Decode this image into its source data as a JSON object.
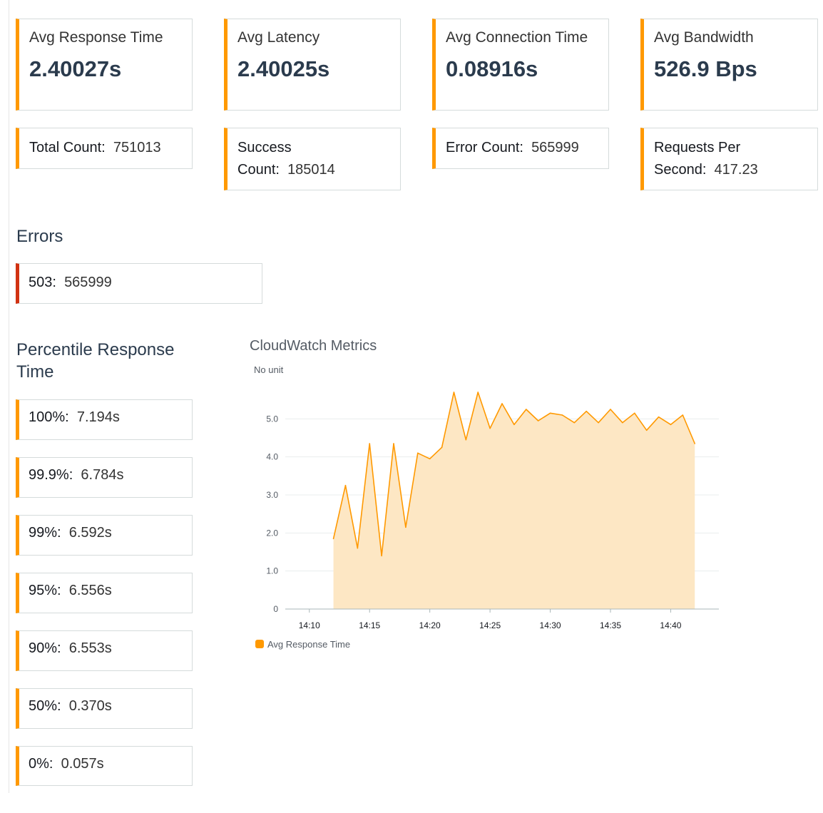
{
  "summary_metrics": [
    {
      "label": "Avg Response Time",
      "value": "2.40027s"
    },
    {
      "label": "Avg Latency",
      "value": "2.40025s"
    },
    {
      "label": "Avg Connection Time",
      "value": "0.08916s"
    },
    {
      "label": "Avg Bandwidth",
      "value": "526.9 Bps"
    }
  ],
  "counts": [
    {
      "label": "Total Count:",
      "value": "751013"
    },
    {
      "label": "Success Count:",
      "value": "185014"
    },
    {
      "label": "Error Count:",
      "value": "565999"
    },
    {
      "label": "Requests Per Second:",
      "value": "417.23"
    }
  ],
  "errors": {
    "title": "Errors",
    "items": [
      {
        "label": "503:",
        "value": "565999"
      }
    ]
  },
  "percentiles": {
    "title": "Percentile Response Time",
    "items": [
      {
        "label": "100%:",
        "value": "7.194s"
      },
      {
        "label": "99.9%:",
        "value": "6.784s"
      },
      {
        "label": "99%:",
        "value": "6.592s"
      },
      {
        "label": "95%:",
        "value": "6.556s"
      },
      {
        "label": "90%:",
        "value": "6.553s"
      },
      {
        "label": "50%:",
        "value": "0.370s"
      },
      {
        "label": "0%:",
        "value": "0.057s"
      }
    ]
  },
  "chart": {
    "title": "CloudWatch Metrics",
    "unit_label": "No unit",
    "accent_color": "#ff9900",
    "fill_color": "#fde7c4"
  },
  "chart_data": {
    "type": "area",
    "title": "CloudWatch Metrics",
    "ylabel": "No unit",
    "xlabel": "",
    "ylim": [
      0,
      5.7
    ],
    "y_ticks": [
      "0",
      "1.0",
      "2.0",
      "3.0",
      "4.0",
      "5.0"
    ],
    "x_ticks": [
      "14:10",
      "14:15",
      "14:20",
      "14:25",
      "14:30",
      "14:35",
      "14:40"
    ],
    "x_tick_minutes": [
      10,
      15,
      20,
      25,
      30,
      35,
      40
    ],
    "x_range_minutes": [
      8,
      44
    ],
    "grid": true,
    "legend": "bottom-left",
    "series": [
      {
        "name": "Avg Response Time",
        "x": [
          "14:12",
          "14:13",
          "14:14",
          "14:15",
          "14:16",
          "14:17",
          "14:18",
          "14:19",
          "14:20",
          "14:21",
          "14:22",
          "14:23",
          "14:24",
          "14:25",
          "14:26",
          "14:27",
          "14:28",
          "14:29",
          "14:30",
          "14:31",
          "14:32",
          "14:33",
          "14:34",
          "14:35",
          "14:36",
          "14:37",
          "14:38",
          "14:39",
          "14:40",
          "14:41",
          "14:42"
        ],
        "x_minutes": [
          12,
          13,
          14,
          15,
          16,
          17,
          18,
          19,
          20,
          21,
          22,
          23,
          24,
          25,
          26,
          27,
          28,
          29,
          30,
          31,
          32,
          33,
          34,
          35,
          36,
          37,
          38,
          39,
          40,
          41,
          42
        ],
        "values": [
          1.85,
          3.25,
          1.6,
          4.35,
          1.4,
          4.35,
          2.15,
          4.1,
          3.95,
          4.25,
          5.7,
          4.45,
          5.7,
          4.75,
          5.4,
          4.85,
          5.25,
          4.95,
          5.15,
          5.1,
          4.9,
          5.2,
          4.9,
          5.25,
          4.9,
          5.15,
          4.7,
          5.05,
          4.85,
          5.1,
          4.35
        ]
      }
    ]
  }
}
